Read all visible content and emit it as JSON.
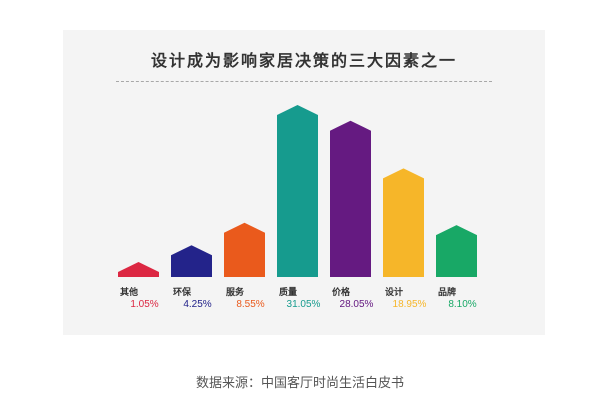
{
  "chart_data": {
    "type": "bar",
    "title": "设计成为影响家居决策的三大因素之一",
    "categories": [
      "其他",
      "环保",
      "服务",
      "质量",
      "价格",
      "设计",
      "品牌"
    ],
    "values": [
      1.05,
      4.25,
      8.55,
      31.05,
      28.05,
      18.95,
      8.1
    ],
    "value_labels": [
      "1.05%",
      "4.25%",
      "8.55%",
      "31.05%",
      "28.05%",
      "18.95%",
      "8.10%"
    ],
    "colors": [
      "#dc2742",
      "#23238a",
      "#ea5a1c",
      "#169b8e",
      "#651a81",
      "#f6b629",
      "#18a866"
    ],
    "bar_shape": "arrow-up",
    "grid": false,
    "legend": "none"
  },
  "source": "数据来源：中国客厅时尚生活白皮书"
}
